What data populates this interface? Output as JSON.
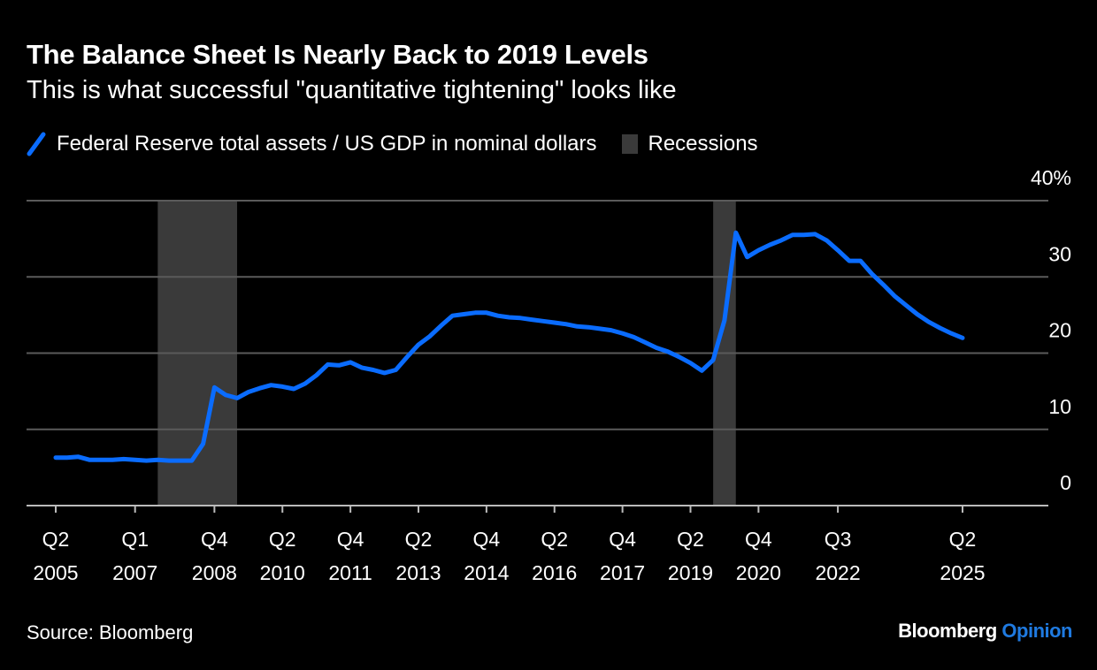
{
  "title": "The Balance Sheet Is Nearly Back to 2019 Levels",
  "subtitle": "This is what successful \"quantitative tightening\" looks like",
  "source": "Source: Bloomberg",
  "brand": {
    "name": "Bloomberg",
    "suffix": "Opinion",
    "suffix_color": "#1f7ae0"
  },
  "chart_data": {
    "type": "line",
    "legend_placement": "top-left",
    "grid": true,
    "ylim": [
      0,
      40
    ],
    "y_ticks": [
      {
        "value": 0,
        "label": "0"
      },
      {
        "value": 10,
        "label": "10"
      },
      {
        "value": 20,
        "label": "20"
      },
      {
        "value": 30,
        "label": "30"
      },
      {
        "value": 40,
        "label": "40%"
      }
    ],
    "x_ticks": [
      {
        "q": "2005 Q2",
        "line1": "Q2",
        "line2": "2005"
      },
      {
        "q": "2007 Q1",
        "line1": "Q1",
        "line2": "2007"
      },
      {
        "q": "2008 Q4",
        "line1": "Q4",
        "line2": "2008"
      },
      {
        "q": "2010 Q2",
        "line1": "Q2",
        "line2": "2010"
      },
      {
        "q": "2011 Q4",
        "line1": "Q4",
        "line2": "2011"
      },
      {
        "q": "2013 Q2",
        "line1": "Q2",
        "line2": "2013"
      },
      {
        "q": "2014 Q4",
        "line1": "Q4",
        "line2": "2014"
      },
      {
        "q": "2016 Q2",
        "line1": "Q2",
        "line2": "2016"
      },
      {
        "q": "2017 Q4",
        "line1": "Q4",
        "line2": "2017"
      },
      {
        "q": "2019 Q2",
        "line1": "Q2",
        "line2": "2019"
      },
      {
        "q": "2020 Q4",
        "line1": "Q4",
        "line2": "2020"
      },
      {
        "q": "2022 Q3",
        "line1": "Q3",
        "line2": "2022"
      },
      {
        "q": "2025 Q2",
        "line1": "Q2",
        "line2": "2025"
      }
    ],
    "recessions": {
      "name": "Recessions",
      "color": "#3a3a3a",
      "ranges": [
        [
          "2007 Q3",
          "2009 Q2"
        ],
        [
          "2019 Q4",
          "2020 Q2"
        ]
      ]
    },
    "series": [
      {
        "name": "Federal Reserve total assets / US GDP in nominal dollars",
        "color": "#0a6cff",
        "x": [
          "2005 Q2",
          "2005 Q3",
          "2005 Q4",
          "2006 Q1",
          "2006 Q2",
          "2006 Q3",
          "2006 Q4",
          "2007 Q1",
          "2007 Q2",
          "2007 Q3",
          "2007 Q4",
          "2008 Q1",
          "2008 Q2",
          "2008 Q3",
          "2008 Q4",
          "2009 Q1",
          "2009 Q2",
          "2009 Q3",
          "2009 Q4",
          "2010 Q1",
          "2010 Q2",
          "2010 Q3",
          "2010 Q4",
          "2011 Q1",
          "2011 Q2",
          "2011 Q3",
          "2011 Q4",
          "2012 Q1",
          "2012 Q2",
          "2012 Q3",
          "2012 Q4",
          "2013 Q1",
          "2013 Q2",
          "2013 Q3",
          "2013 Q4",
          "2014 Q1",
          "2014 Q2",
          "2014 Q3",
          "2014 Q4",
          "2015 Q1",
          "2015 Q2",
          "2015 Q3",
          "2015 Q4",
          "2016 Q1",
          "2016 Q2",
          "2016 Q3",
          "2016 Q4",
          "2017 Q1",
          "2017 Q2",
          "2017 Q3",
          "2017 Q4",
          "2018 Q1",
          "2018 Q2",
          "2018 Q3",
          "2018 Q4",
          "2019 Q1",
          "2019 Q2",
          "2019 Q3",
          "2019 Q4",
          "2020 Q1",
          "2020 Q2",
          "2020 Q3",
          "2020 Q4",
          "2021 Q1",
          "2021 Q2",
          "2021 Q3",
          "2021 Q4",
          "2022 Q1",
          "2022 Q2",
          "2022 Q3",
          "2022 Q4",
          "2023 Q1",
          "2023 Q2",
          "2023 Q3",
          "2023 Q4",
          "2024 Q1",
          "2024 Q2",
          "2024 Q3",
          "2024 Q4",
          "2025 Q1",
          "2025 Q2"
        ],
        "values": [
          6.3,
          6.3,
          6.4,
          6.0,
          6.0,
          6.0,
          6.1,
          6.0,
          5.9,
          6.0,
          5.9,
          5.9,
          5.9,
          8.1,
          15.5,
          14.5,
          14.1,
          14.9,
          15.4,
          15.8,
          15.6,
          15.3,
          16.0,
          17.1,
          18.5,
          18.4,
          18.8,
          18.1,
          17.8,
          17.4,
          17.8,
          19.5,
          21.1,
          22.2,
          23.6,
          24.9,
          25.1,
          25.3,
          25.3,
          24.9,
          24.7,
          24.6,
          24.4,
          24.2,
          24.0,
          23.8,
          23.5,
          23.4,
          23.2,
          23.0,
          22.6,
          22.1,
          21.4,
          20.7,
          20.2,
          19.5,
          18.7,
          17.7,
          19.1,
          24.3,
          35.8,
          32.6,
          33.5,
          34.2,
          34.8,
          35.5,
          35.5,
          35.6,
          34.8,
          33.5,
          32.1,
          32.1,
          30.4,
          29.0,
          27.5,
          26.3,
          25.1,
          24.1,
          23.3,
          22.6,
          22.0
        ]
      }
    ]
  }
}
